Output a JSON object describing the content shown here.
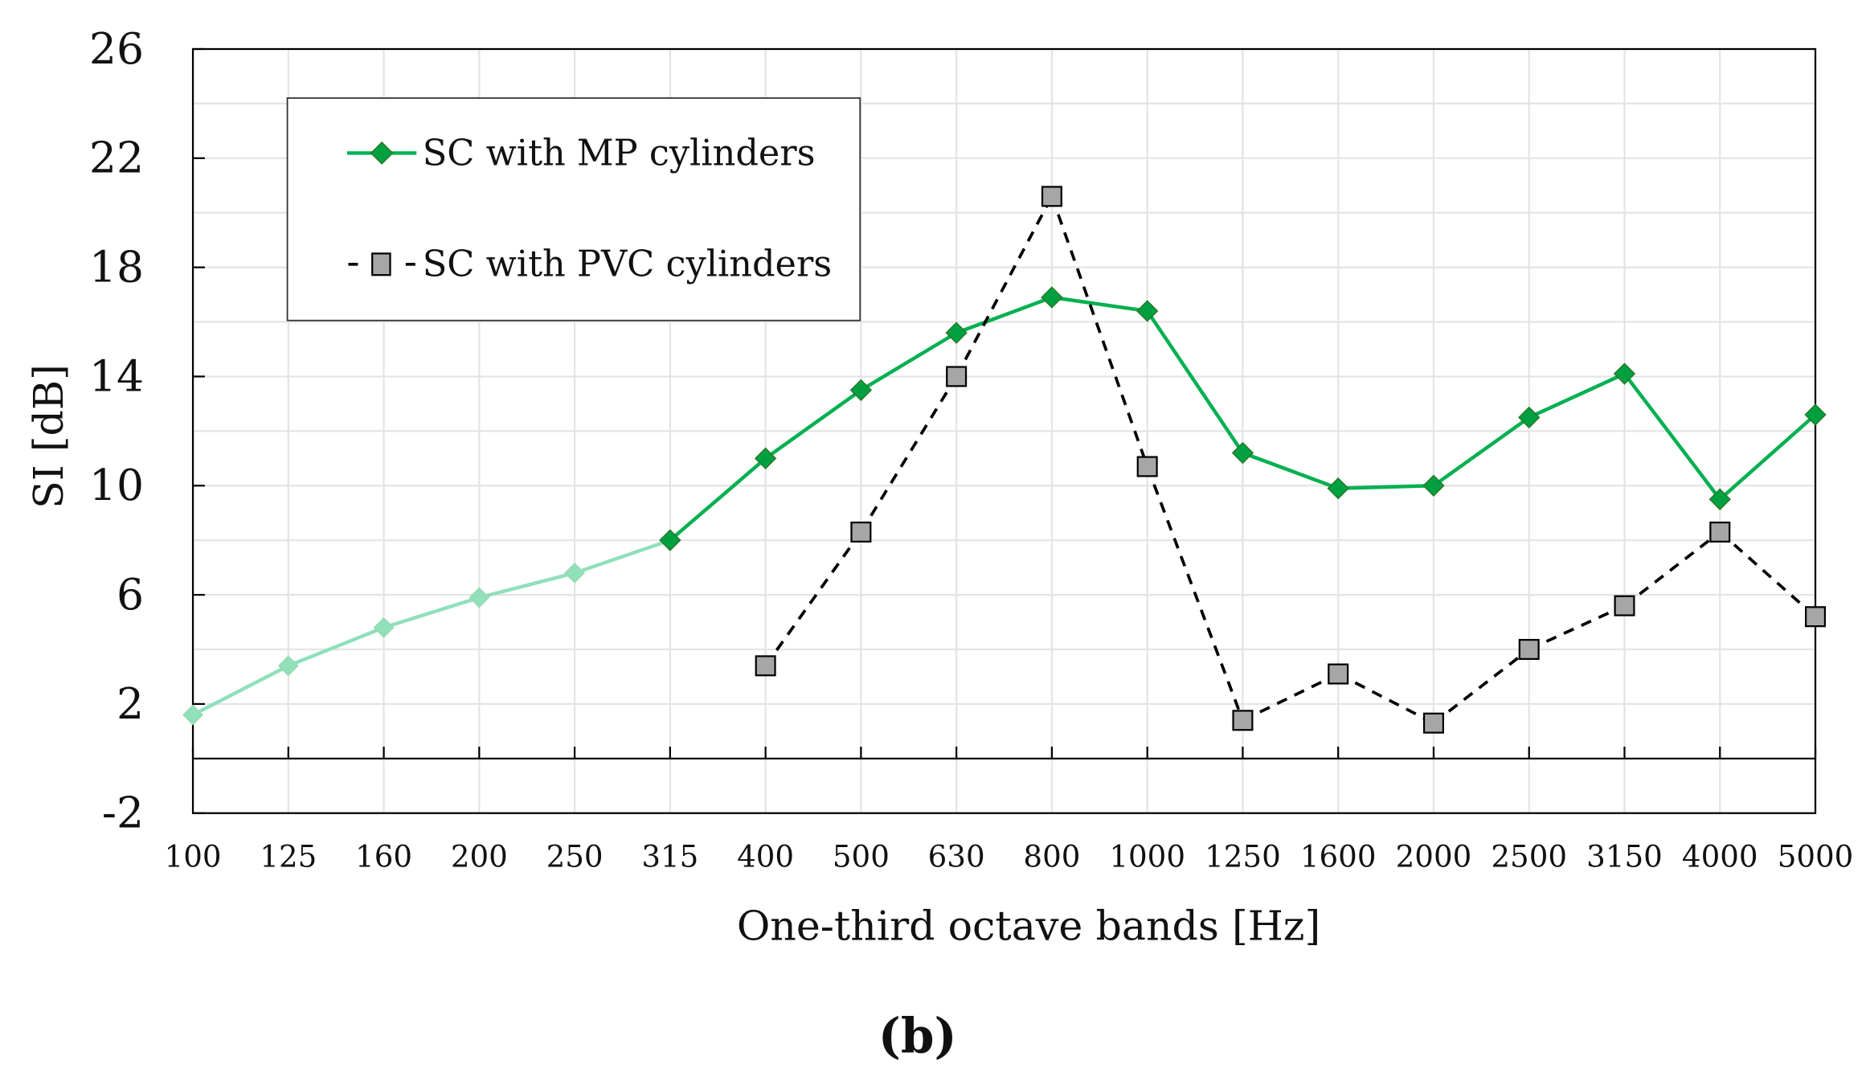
{
  "chart_data": {
    "type": "line",
    "title": "",
    "xlabel": "One-third octave bands [Hz]",
    "ylabel": "SI [dB]",
    "ylim": [
      -2,
      26
    ],
    "yticks": [
      -2,
      2,
      6,
      10,
      14,
      18,
      22,
      26
    ],
    "grid": true,
    "legend_position": "top-left",
    "caption": "(b)",
    "categories": [
      "100",
      "125",
      "160",
      "200",
      "250",
      "315",
      "400",
      "500",
      "630",
      "800",
      "1000",
      "1250",
      "1600",
      "2000",
      "2500",
      "3150",
      "4000",
      "5000"
    ],
    "series": [
      {
        "name": "SC with MP cylinders",
        "color": "#00b050",
        "faded_color": "#8fe0bb",
        "marker": "diamond",
        "dash": false,
        "faded_through_category": "315",
        "values": [
          1.6,
          3.4,
          4.8,
          5.9,
          6.8,
          8.0,
          11.0,
          13.5,
          15.6,
          16.9,
          16.4,
          11.2,
          9.9,
          10.0,
          12.5,
          14.1,
          9.5,
          12.6
        ]
      },
      {
        "name": "SC with PVC cylinders",
        "color": "#000000",
        "marker_fill": "#a6a6a6",
        "marker": "square",
        "dash": true,
        "values": [
          null,
          null,
          null,
          null,
          null,
          null,
          3.4,
          8.3,
          14.0,
          20.6,
          10.7,
          1.4,
          3.1,
          1.3,
          4.0,
          5.6,
          8.3,
          5.2
        ]
      }
    ]
  }
}
